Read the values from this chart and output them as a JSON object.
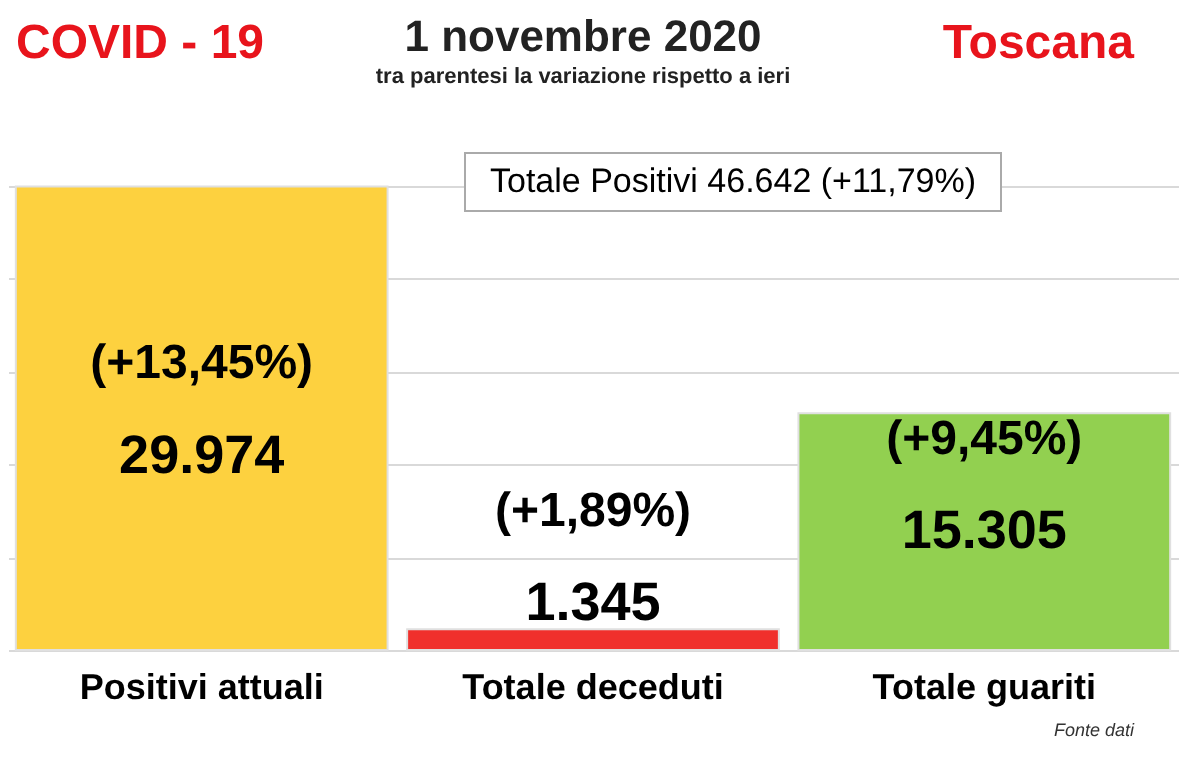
{
  "chart_data": {
    "type": "bar",
    "title": "1 novembre 2020",
    "subtitle": "tra parentesi la variazione rispetto a ieri",
    "categories": [
      "Positivi attuali",
      "Totale deceduti",
      "Totale guariti"
    ],
    "values": [
      29974,
      1345,
      15305
    ],
    "colors": [
      "#fdd13f",
      "#f0302c",
      "#92d050"
    ],
    "value_labels": [
      "29.974",
      "1.345",
      "15.305"
    ],
    "annotations": [
      "COVID - 19",
      "Toscana",
      "Totale Positivi 46.642 (+11,79%)",
      "Fonte dati",
      "(+13,45%)",
      "(+1,89%)",
      "(+9,45%)"
    ],
    "ylim": [
      0,
      30000
    ],
    "yticks": [
      {
        "value": 0,
        "label": null
      },
      {
        "value": 6000,
        "label": null
      },
      {
        "value": 12000,
        "label": null
      },
      {
        "value": 18000,
        "label": null
      },
      {
        "value": 24000,
        "label": null
      },
      {
        "value": 30000,
        "label": null
      }
    ],
    "grid": "y",
    "tick_labels": "x"
  }
}
